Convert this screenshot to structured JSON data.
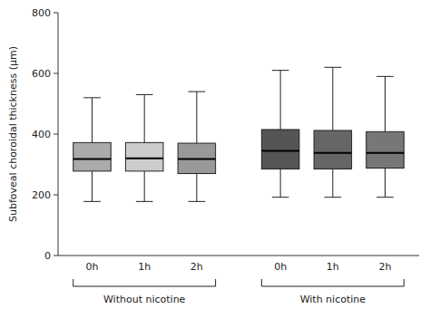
{
  "chart_data": {
    "type": "box",
    "ylabel": "Subfoveal choroidal thickness (μm)",
    "categories": [
      "0h",
      "1h",
      "2h"
    ],
    "series": [
      {
        "name": "Without nicotine",
        "colors": [
          "#aaaaaa",
          "#cccccc",
          "#999999"
        ],
        "whisker_low": [
          178,
          178,
          178
        ],
        "q1": [
          278,
          278,
          270
        ],
        "median": [
          318,
          320,
          318
        ],
        "q3": [
          372,
          372,
          370
        ],
        "whisker_high": [
          520,
          530,
          540
        ]
      },
      {
        "name": "With nicotine",
        "colors": [
          "#555555",
          "#666666",
          "#777777"
        ],
        "whisker_low": [
          192,
          192,
          192
        ],
        "q1": [
          285,
          285,
          288
        ],
        "median": [
          345,
          338,
          338
        ],
        "q3": [
          415,
          412,
          408
        ],
        "whisker_high": [
          610,
          620,
          590
        ]
      }
    ],
    "ylim": [
      0,
      800
    ],
    "yticks": [
      0,
      200,
      400,
      600,
      800
    ],
    "grid": false
  }
}
